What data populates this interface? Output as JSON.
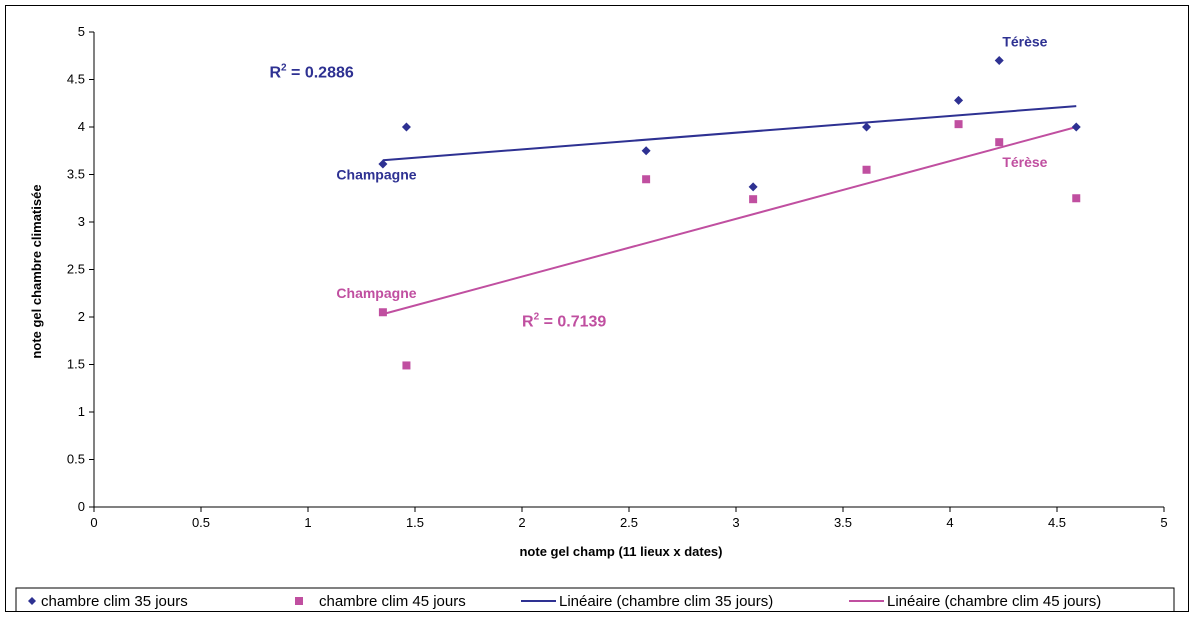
{
  "chart_data": {
    "type": "scatter",
    "xlabel": "note gel champ (11 lieux x dates)",
    "ylabel": "note gel  chambre climatisée",
    "xlim": [
      0,
      5
    ],
    "ylim": [
      0,
      5
    ],
    "x_ticks": [
      "0",
      "0.5",
      "1",
      "1.5",
      "2",
      "2.5",
      "3",
      "3.5",
      "4",
      "4.5",
      "5"
    ],
    "y_ticks": [
      "0",
      "0.5",
      "1",
      "1.5",
      "2",
      "2.5",
      "3",
      "3.5",
      "4",
      "4.5",
      "5"
    ],
    "grid": false,
    "legend_position": "bottom",
    "series": [
      {
        "name": "chambre clim 35 jours",
        "color": "#2E3192",
        "marker": "diamond",
        "points": [
          {
            "x": 1.35,
            "y": 3.61
          },
          {
            "x": 1.46,
            "y": 4.0
          },
          {
            "x": 2.58,
            "y": 3.75
          },
          {
            "x": 3.08,
            "y": 3.37
          },
          {
            "x": 3.61,
            "y": 4.0
          },
          {
            "x": 4.04,
            "y": 4.28
          },
          {
            "x": 4.23,
            "y": 4.7
          },
          {
            "x": 4.59,
            "y": 4.0
          }
        ]
      },
      {
        "name": "chambre clim 45 jours",
        "color": "#C04FA0",
        "marker": "square",
        "points": [
          {
            "x": 1.35,
            "y": 2.05
          },
          {
            "x": 1.46,
            "y": 1.49
          },
          {
            "x": 2.58,
            "y": 3.45
          },
          {
            "x": 3.08,
            "y": 3.24
          },
          {
            "x": 3.61,
            "y": 3.55
          },
          {
            "x": 4.04,
            "y": 4.03
          },
          {
            "x": 4.23,
            "y": 3.84
          },
          {
            "x": 4.59,
            "y": 3.25
          }
        ]
      }
    ],
    "trendlines": [
      {
        "name": "Linéaire (chambre clim 35 jours)",
        "color": "#2E3192",
        "from": {
          "x": 1.35,
          "y": 3.65
        },
        "to": {
          "x": 4.59,
          "y": 4.22
        }
      },
      {
        "name": "Linéaire (chambre clim 45 jours)",
        "color": "#C04FA0",
        "from": {
          "x": 1.35,
          "y": 2.03
        },
        "to": {
          "x": 4.59,
          "y": 4.0
        }
      }
    ],
    "annotations": [
      {
        "text": "Térèse",
        "color": "#2E3192",
        "x": 4.35,
        "y": 4.85
      },
      {
        "text": "Champagne",
        "color": "#2E3192",
        "x": 1.32,
        "y": 3.45
      },
      {
        "text": "Térèse",
        "color": "#C04FA0",
        "x": 4.35,
        "y": 3.58
      },
      {
        "text": "Champagne",
        "color": "#C04FA0",
        "x": 1.32,
        "y": 2.2
      }
    ],
    "r2_labels": [
      {
        "label": "R",
        "exponent": "2",
        "value": " = 0.2886",
        "color": "#2E3192",
        "x": 0.82,
        "y": 4.52
      },
      {
        "label": "R",
        "exponent": "2",
        "value": " = 0.7139",
        "color": "#C04FA0",
        "x": 2.0,
        "y": 1.9
      }
    ]
  }
}
